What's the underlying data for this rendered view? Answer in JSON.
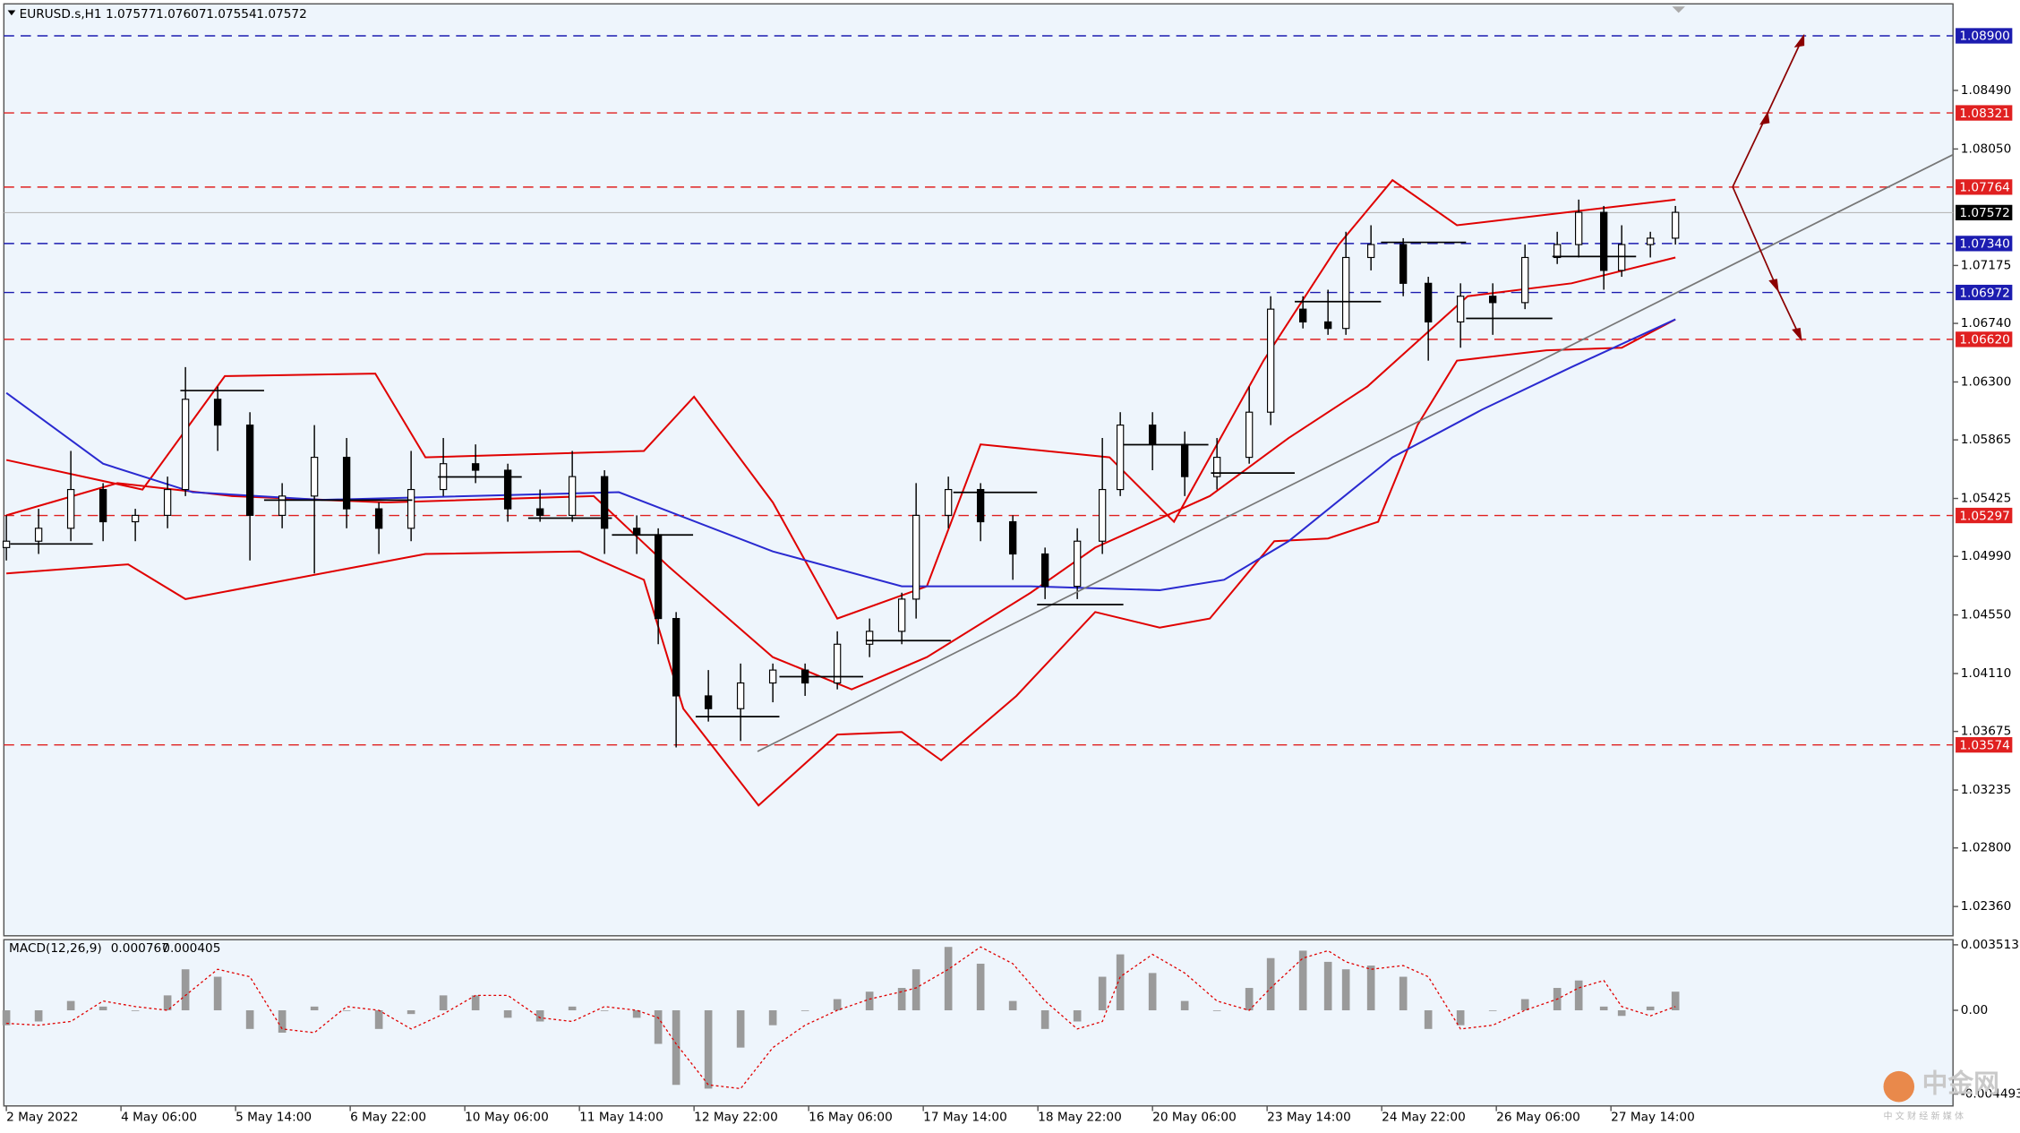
{
  "chart_data": {
    "type": "candlestick",
    "symbol": "EURUSD.s,H1",
    "quote": [
      1.07577,
      1.07607,
      1.07554,
      1.07572
    ],
    "xlim": [
      -0.7,
      543.5
    ],
    "ylim": [
      1.0214,
      1.0914
    ],
    "yticks": [
      {
        "value": 1.0849,
        "label": "1.08490"
      },
      {
        "value": 1.0805,
        "label": "1.08050"
      },
      {
        "value": 1.07175,
        "label": "1.07175"
      },
      {
        "value": 1.0674,
        "label": "1.06740"
      },
      {
        "value": 1.063,
        "label": "1.06300"
      },
      {
        "value": 1.05865,
        "label": "1.05865"
      },
      {
        "value": 1.05425,
        "label": "1.05425"
      },
      {
        "value": 1.0499,
        "label": "1.04990"
      },
      {
        "value": 1.0455,
        "label": "1.04550"
      },
      {
        "value": 1.0411,
        "label": "1.04110"
      },
      {
        "value": 1.03675,
        "label": "1.03675"
      },
      {
        "value": 1.03235,
        "label": "1.03235"
      },
      {
        "value": 1.028,
        "label": "1.02800"
      },
      {
        "value": 1.0236,
        "label": "1.02360"
      }
    ],
    "xticks": [
      {
        "value": 0,
        "label": "2 May 2022"
      },
      {
        "value": 32,
        "label": "4 May 06:00"
      },
      {
        "value": 64,
        "label": "5 May 14:00"
      },
      {
        "value": 96,
        "label": "6 May 22:00"
      },
      {
        "value": 128,
        "label": "10 May 06:00"
      },
      {
        "value": 160,
        "label": "11 May 14:00"
      },
      {
        "value": 192,
        "label": "12 May 22:00"
      },
      {
        "value": 224,
        "label": "16 May 06:00"
      },
      {
        "value": 256,
        "label": "17 May 14:00"
      },
      {
        "value": 288,
        "label": "18 May 22:00"
      },
      {
        "value": 320,
        "label": "20 May 06:00"
      },
      {
        "value": 352,
        "label": "23 May 14:00"
      },
      {
        "value": 384,
        "label": "24 May 22:00"
      },
      {
        "value": 416,
        "label": "26 May 06:00"
      },
      {
        "value": 448,
        "label": "27 May 14:00"
      }
    ],
    "levels": [
      {
        "value": 1.089,
        "label": "1.08900",
        "color": "#1c1cb0"
      },
      {
        "value": 1.08321,
        "label": "1.08321",
        "color": "#e02020"
      },
      {
        "value": 1.07764,
        "label": "1.07764",
        "color": "#e02020"
      },
      {
        "value": 1.07572,
        "label": "1.07572",
        "color": "#000000"
      },
      {
        "value": 1.0734,
        "label": "1.07340",
        "color": "#1c1cb0"
      },
      {
        "value": 1.06972,
        "label": "1.06972",
        "color": "#1c1cb0"
      },
      {
        "value": 1.0662,
        "label": "1.06620",
        "color": "#e02020"
      },
      {
        "value": 1.05297,
        "label": "1.05297",
        "color": "#e02020"
      },
      {
        "value": 1.03574,
        "label": "1.03574",
        "color": "#e02020"
      }
    ],
    "x": [
      0,
      9,
      18,
      27,
      36,
      45,
      50,
      59,
      68,
      77,
      86,
      95,
      104,
      113,
      122,
      131,
      140,
      149,
      158,
      167,
      176,
      182,
      187,
      196,
      205,
      214,
      223,
      232,
      241,
      250,
      254,
      263,
      272,
      281,
      290,
      299,
      306,
      311,
      320,
      329,
      338,
      347,
      353,
      362,
      369,
      374,
      381,
      390,
      397,
      406,
      415,
      424,
      433,
      439,
      446,
      451,
      459,
      466
    ],
    "open": [
      1.05056,
      1.05104,
      1.05201,
      1.05492,
      1.0525,
      1.05298,
      1.05492,
      1.0617,
      1.05976,
      1.05298,
      1.05443,
      1.05734,
      1.05347,
      1.05201,
      1.05492,
      1.05686,
      1.05637,
      1.05347,
      1.05298,
      1.05589,
      1.05201,
      1.05153,
      1.04523,
      1.03942,
      1.03846,
      1.04039,
      1.04136,
      1.04039,
      1.0433,
      1.04427,
      1.04669,
      1.05298,
      1.05492,
      1.0525,
      1.05008,
      1.04765,
      1.05104,
      1.05492,
      1.05976,
      1.05831,
      1.05589,
      1.05734,
      1.06073,
      1.06847,
      1.06751,
      1.06702,
      1.07235,
      1.07332,
      1.07041,
      1.06751,
      1.06944,
      1.06896,
      1.07235,
      1.07332,
      1.07574,
      1.07138,
      1.07332,
      1.0738
    ],
    "high": [
      1.05298,
      1.05347,
      1.05782,
      1.0554,
      1.05347,
      1.05589,
      1.06412,
      1.06266,
      1.06073,
      1.0554,
      1.05976,
      1.05879,
      1.05395,
      1.05782,
      1.05879,
      1.05831,
      1.05686,
      1.05492,
      1.05782,
      1.05637,
      1.05298,
      1.05201,
      1.04572,
      1.04136,
      1.04185,
      1.04185,
      1.04185,
      1.04427,
      1.04523,
      1.04717,
      1.0554,
      1.05589,
      1.0554,
      1.05298,
      1.05056,
      1.05201,
      1.05879,
      1.06073,
      1.06073,
      1.05928,
      1.05879,
      1.06266,
      1.06944,
      1.06944,
      1.06993,
      1.07428,
      1.07477,
      1.0738,
      1.0709,
      1.07041,
      1.07041,
      1.07332,
      1.07428,
      1.0767,
      1.07622,
      1.07477,
      1.07428,
      1.07622
    ],
    "low": [
      1.04959,
      1.05008,
      1.05104,
      1.05104,
      1.05104,
      1.05201,
      1.05443,
      1.05782,
      1.04959,
      1.05201,
      1.04862,
      1.05201,
      1.05008,
      1.05104,
      1.05443,
      1.0554,
      1.0525,
      1.0525,
      1.0525,
      1.05008,
      1.05008,
      1.0433,
      1.03555,
      1.03749,
      1.03603,
      1.03894,
      1.03942,
      1.03991,
      1.04233,
      1.0433,
      1.04523,
      1.05201,
      1.05104,
      1.04814,
      1.04669,
      1.04669,
      1.05008,
      1.05443,
      1.05637,
      1.05443,
      1.05492,
      1.05686,
      1.05976,
      1.06702,
      1.06654,
      1.06654,
      1.07138,
      1.06944,
      1.0646,
      1.06557,
      1.06654,
      1.06847,
      1.07186,
      1.07235,
      1.06993,
      1.0709,
      1.07235,
      1.07332
    ],
    "close": [
      1.05104,
      1.05201,
      1.05492,
      1.0525,
      1.05298,
      1.05492,
      1.0617,
      1.05976,
      1.05298,
      1.05443,
      1.05734,
      1.05347,
      1.05201,
      1.05492,
      1.05686,
      1.05637,
      1.05347,
      1.05298,
      1.05589,
      1.05201,
      1.05153,
      1.04523,
      1.03942,
      1.03846,
      1.04039,
      1.04136,
      1.04039,
      1.0433,
      1.04427,
      1.04669,
      1.05298,
      1.05492,
      1.0525,
      1.05008,
      1.04765,
      1.05104,
      1.05492,
      1.05976,
      1.05831,
      1.05589,
      1.05734,
      1.06073,
      1.06847,
      1.06751,
      1.06702,
      1.07235,
      1.07332,
      1.07041,
      1.06751,
      1.06944,
      1.06896,
      1.07235,
      1.07332,
      1.07574,
      1.07138,
      1.07332,
      1.0738,
      1.07574
    ],
    "overlays": [
      {
        "color": "#e00000",
        "x": [
          0,
          38,
          61,
          103,
          117,
          178,
          192,
          214,
          232,
          257,
          272,
          308,
          326,
          351,
          372,
          387,
          405,
          466
        ],
        "values": [
          1.05714,
          1.05492,
          1.06344,
          1.06363,
          1.05734,
          1.05782,
          1.06189,
          1.05395,
          1.04523,
          1.04765,
          1.05831,
          1.05734,
          1.0525,
          1.0646,
          1.07332,
          1.07816,
          1.07477,
          1.0767
        ]
      },
      {
        "color": "#e00000",
        "x": [
          0,
          31,
          63,
          106,
          164,
          185,
          214,
          236,
          257,
          286,
          304,
          336,
          358,
          380,
          394,
          408,
          437,
          466
        ],
        "values": [
          1.05298,
          1.0554,
          1.05443,
          1.05395,
          1.05443,
          1.04911,
          1.04233,
          1.03991,
          1.04233,
          1.04717,
          1.05056,
          1.05443,
          1.05879,
          1.06266,
          1.06605,
          1.06944,
          1.07041,
          1.07235
        ]
      },
      {
        "color": "#e00000",
        "x": [
          0,
          34,
          50,
          117,
          160,
          178,
          189,
          210,
          232,
          250,
          261,
          282,
          304,
          322,
          336,
          354,
          369,
          383,
          394,
          405,
          430,
          451,
          466
        ],
        "values": [
          1.04862,
          1.0493,
          1.04669,
          1.05008,
          1.05027,
          1.04814,
          1.03846,
          1.03119,
          1.03652,
          1.03671,
          1.03458,
          1.03942,
          1.04572,
          1.04455,
          1.04523,
          1.05104,
          1.05124,
          1.0525,
          1.05976,
          1.0646,
          1.06538,
          1.06557,
          1.0677
        ]
      },
      {
        "color": "#2a2ad0",
        "x": [
          0,
          27,
          52,
          88,
          171,
          214,
          250,
          286,
          322,
          340,
          358,
          387,
          412,
          437,
          466
        ],
        "values": [
          1.06218,
          1.05686,
          1.05472,
          1.05414,
          1.05472,
          1.05027,
          1.04765,
          1.04765,
          1.04736,
          1.04814,
          1.05104,
          1.05734,
          1.06092,
          1.06412,
          1.0677
        ]
      }
    ],
    "macd": {
      "title": "MACD(12,26,9)",
      "readout": [
        0.000767,
        0.000405
      ],
      "ylim": [
        -0.00513,
        0.00379
      ],
      "yticks": [
        0.003513,
        {
          "value": 0,
          "label": "0.00"
        },
        -0.004493
      ],
      "values": [
        -0.0008,
        -0.0006,
        0.0005,
        0.0002,
        0,
        0.0008,
        0.0022,
        0.0018,
        -0.001,
        -0.0012,
        0.0002,
        0,
        -0.001,
        -0.0002,
        0.0008,
        0.0008,
        -0.0004,
        -0.0006,
        0.0002,
        0,
        -0.0004,
        -0.0018,
        -0.004,
        -0.0042,
        -0.002,
        -0.0008,
        0,
        0.0006,
        0.001,
        0.0012,
        0.0022,
        0.0034,
        0.0025,
        0.0005,
        -0.001,
        -0.0006,
        0.0018,
        0.003,
        0.002,
        0.0005,
        0,
        0.0012,
        0.0028,
        0.0032,
        0.0026,
        0.0022,
        0.0024,
        0.0018,
        -0.001,
        -0.0008,
        0,
        0.0006,
        0.0012,
        0.0016,
        0.0002,
        -0.0003,
        0.0002,
        0.001
      ],
      "signal": [
        -0.0007,
        -0.0008,
        -0.0006,
        0.0005,
        0.0002,
        0,
        0.0008,
        0.0022,
        0.0018,
        -0.001,
        -0.0012,
        0.0002,
        0,
        -0.001,
        -0.0002,
        0.0008,
        0.0008,
        -0.0004,
        -0.0006,
        0.0002,
        0,
        -0.0004,
        -0.0018,
        -0.004,
        -0.0042,
        -0.002,
        -0.0008,
        0,
        0.0006,
        0.001,
        0.0012,
        0.0022,
        0.0034,
        0.0025,
        0.0005,
        -0.001,
        -0.0006,
        0.0018,
        0.003,
        0.002,
        0.0005,
        0,
        0.0012,
        0.0028,
        0.0032,
        0.0026,
        0.0022,
        0.0024,
        0.0018,
        -0.001,
        -0.0008,
        0,
        0.0006,
        0.0012,
        0.0016,
        0.0002,
        -0.0003,
        0.0002
      ]
    },
    "watermark": "中金网",
    "watermark_sub": "中 文 财 经 新 媒 体"
  }
}
